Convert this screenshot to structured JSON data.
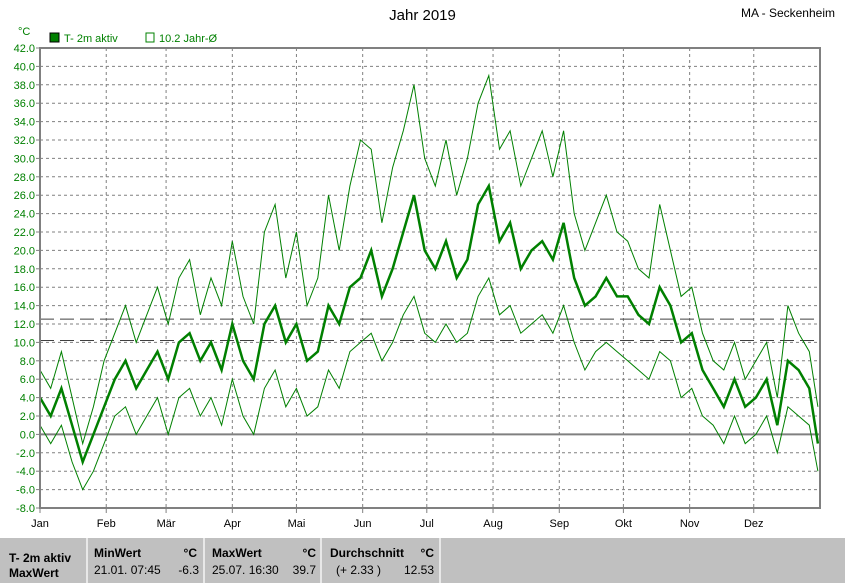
{
  "title": "Jahr 2019",
  "station": "MA - Seckenheim",
  "chart_data": {
    "type": "line",
    "title": "Jahr 2019",
    "ylabel": "°C",
    "ylim": [
      -8,
      42
    ],
    "yticks": [
      "42.0",
      "40.0",
      "38.0",
      "36.0",
      "34.0",
      "32.0",
      "30.0",
      "28.0",
      "26.0",
      "24.0",
      "22.0",
      "20.0",
      "18.0",
      "16.0",
      "14.0",
      "12.0",
      "10.0",
      "8.0",
      "6.0",
      "4.0",
      "2.0",
      "0.0",
      "-2.0",
      "-4.0",
      "-6.0",
      "-8.0"
    ],
    "xticks": [
      "Jan",
      "Feb",
      "Mär",
      "Apr",
      "Mai",
      "Jun",
      "Jul",
      "Aug",
      "Sep",
      "Okt",
      "Nov",
      "Dez"
    ],
    "grid": true,
    "legend": {
      "placement": "top-left",
      "items": [
        "T- 2m aktiv",
        "10.2 Jahr-Ø"
      ]
    },
    "reference_lines": [
      {
        "value": 12.53
      },
      {
        "value": 10.2
      },
      {
        "value": 0
      }
    ],
    "colors": {
      "series": "#008000",
      "axis": "#808080",
      "ticklabels": "#008000"
    },
    "x_day_of_year": [
      0,
      5,
      10,
      15,
      20,
      25,
      30,
      35,
      40,
      45,
      50,
      55,
      60,
      65,
      70,
      75,
      80,
      85,
      90,
      95,
      100,
      105,
      110,
      115,
      120,
      125,
      130,
      135,
      140,
      145,
      150,
      155,
      160,
      165,
      170,
      175,
      180,
      185,
      190,
      195,
      200,
      205,
      210,
      215,
      220,
      225,
      230,
      235,
      240,
      245,
      250,
      255,
      260,
      265,
      270,
      275,
      280,
      285,
      290,
      295,
      300,
      305,
      310,
      315,
      320,
      325,
      330,
      335,
      340,
      345,
      350,
      355,
      360,
      364
    ],
    "series": [
      {
        "role": "mean",
        "values": [
          4,
          2,
          5,
          1,
          -3,
          0,
          3,
          6,
          8,
          5,
          7,
          9,
          6,
          10,
          11,
          8,
          10,
          7,
          12,
          8,
          6,
          12,
          14,
          10,
          12,
          8,
          9,
          14,
          12,
          16,
          17,
          20,
          15,
          18,
          22,
          26,
          20,
          18,
          21,
          17,
          19,
          25,
          27,
          21,
          23,
          18,
          20,
          21,
          19,
          23,
          17,
          14,
          15,
          17,
          15,
          15,
          13,
          12,
          16,
          14,
          10,
          11,
          7,
          5,
          3,
          6,
          3,
          4,
          6,
          1,
          8,
          7,
          5,
          -1
        ]
      },
      {
        "role": "max",
        "values": [
          7,
          5,
          9,
          4,
          -1,
          3,
          8,
          11,
          14,
          10,
          13,
          16,
          12,
          17,
          19,
          13,
          17,
          14,
          21,
          15,
          12,
          22,
          25,
          17,
          22,
          14,
          17,
          26,
          20,
          27,
          32,
          31,
          23,
          29,
          33,
          38,
          30,
          27,
          32,
          26,
          30,
          36,
          39,
          31,
          33,
          27,
          30,
          33,
          28,
          33,
          24,
          20,
          23,
          26,
          22,
          21,
          18,
          17,
          25,
          20,
          15,
          16,
          11,
          8,
          7,
          10,
          6,
          8,
          10,
          4,
          14,
          11,
          9,
          3
        ]
      },
      {
        "role": "min",
        "values": [
          1,
          -1,
          1,
          -3,
          -6,
          -4,
          -1,
          2,
          3,
          0,
          2,
          4,
          0,
          4,
          5,
          2,
          4,
          1,
          6,
          2,
          0,
          5,
          7,
          3,
          5,
          2,
          3,
          7,
          5,
          9,
          10,
          11,
          8,
          10,
          13,
          15,
          11,
          10,
          12,
          10,
          11,
          15,
          17,
          13,
          14,
          11,
          12,
          13,
          11,
          14,
          10,
          7,
          9,
          10,
          9,
          8,
          7,
          6,
          9,
          8,
          4,
          5,
          2,
          1,
          -1,
          2,
          -1,
          0,
          2,
          -2,
          3,
          2,
          1,
          -4
        ]
      }
    ]
  },
  "panel": {
    "row_label": "T- 2m aktiv",
    "row2_label": "MaxWert",
    "min": {
      "header": "MinWert",
      "unit": "°C",
      "time": "21.01.  07:45",
      "value": "-6.3"
    },
    "max": {
      "header": "MaxWert",
      "unit": "°C",
      "time": "25.07.  16:30",
      "value": "39.7"
    },
    "avg": {
      "header": "Durchschnitt",
      "unit": "°C",
      "diff": "(+ 2.33 )",
      "value": "12.53"
    }
  }
}
